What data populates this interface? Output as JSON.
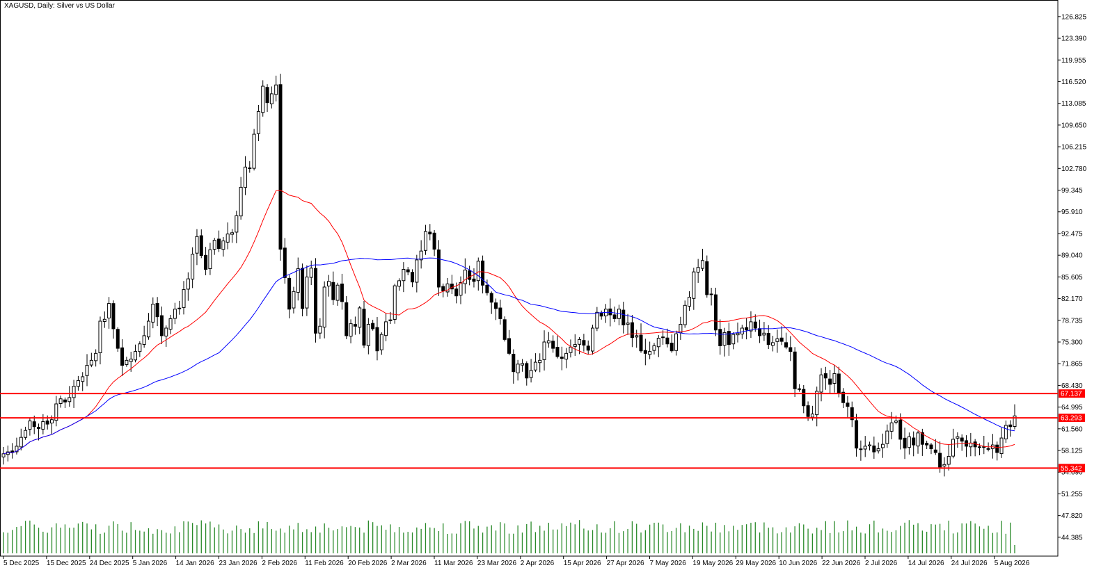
{
  "chart_data": {
    "type": "candlestick",
    "title": "XAGUSD, Daily:  Silver vs US Dollar",
    "ylim": [
      42.5,
      127.8
    ],
    "y_ticks": [
      "126.825",
      "123.390",
      "119.955",
      "116.520",
      "113.085",
      "109.650",
      "106.215",
      "102.780",
      "99.345",
      "95.910",
      "92.475",
      "89.040",
      "85.605",
      "82.170",
      "78.735",
      "75.300",
      "71.865",
      "68.430",
      "64.995",
      "61.560",
      "58.125",
      "54.690",
      "51.255",
      "47.820",
      "44.385"
    ],
    "x_ticks": [
      "5 Dec 2025",
      "15 Dec 2025",
      "24 Dec 2025",
      "5 Jan 2026",
      "14 Jan 2026",
      "23 Jan 2026",
      "2 Feb 2026",
      "11 Feb 2026",
      "20 Feb 2026",
      "2 Mar 2026",
      "11 Mar 2026",
      "23 Mar 2026",
      "2 Apr 2026",
      "15 Apr 2026",
      "27 Apr 2026",
      "7 May 2026",
      "19 May 2026",
      "29 May 2026",
      "10 Jun 2026",
      "22 Jun 2026",
      "2 Jul 2026",
      "14 Jul 2026",
      "24 Jul 2026",
      "5 Aug 2026"
    ],
    "price_levels": [
      {
        "label": "67.137",
        "value": 67.137,
        "color": "#ff0000"
      },
      {
        "label": "63.293",
        "value": 63.293,
        "color": "#ff0000"
      },
      {
        "label": "55.342",
        "value": 55.342,
        "color": "#ff0000"
      }
    ],
    "close_series": [
      57.6,
      57.9,
      57.8,
      58.8,
      60.2,
      61.3,
      62.8,
      61.9,
      61.6,
      62.7,
      62.3,
      63.0,
      65.5,
      66.3,
      65.8,
      66.5,
      68.3,
      69.2,
      69.8,
      71.6,
      72.4,
      73.5,
      78.6,
      78.9,
      81.4,
      77.4,
      74.3,
      71.6,
      72.4,
      72.6,
      73.8,
      75.0,
      76.3,
      78.6,
      81.3,
      79.3,
      76.3,
      77.5,
      79.0,
      80.5,
      80.6,
      83.6,
      85.3,
      89.2,
      92.0,
      89.0,
      86.8,
      89.9,
      91.4,
      90.1,
      91.3,
      92.4,
      92.6,
      95.3,
      99.8,
      103.0,
      102.8,
      108.2,
      111.8,
      115.8,
      113.2,
      114.6,
      116.0,
      90.0,
      85.5,
      80.5,
      83.3,
      86.9,
      80.6,
      85.6,
      87.0,
      76.7,
      77.8,
      84.0,
      84.9,
      82.0,
      84.3,
      81.7,
      76.3,
      78.2,
      77.8,
      80.7,
      74.8,
      78.1,
      77.4,
      73.9,
      76.5,
      78.5,
      78.8,
      84.2,
      85.0,
      86.8,
      86.4,
      84.8,
      88.3,
      89.7,
      92.8,
      92.4,
      90.0,
      84.0,
      83.4,
      84.5,
      83.7,
      82.6,
      84.7,
      86.7,
      85.2,
      84.9,
      88.1,
      84.3,
      83.1,
      81.6,
      80.6,
      79.0,
      75.7,
      73.5,
      70.6,
      71.8,
      71.9,
      69.6,
      70.8,
      72.1,
      72.4,
      75.3,
      75.5,
      74.3,
      73.0,
      72.7,
      73.5,
      74.5,
      74.9,
      75.7,
      74.8,
      74.0,
      77.5,
      80.0,
      79.4,
      80.5,
      79.6,
      79.0,
      80.5,
      78.0,
      78.3,
      76.0,
      76.3,
      73.9,
      73.5,
      73.8,
      74.7,
      75.9,
      76.1,
      75.0,
      73.9,
      76.6,
      78.1,
      81.1,
      82.4,
      86.4,
      87.1,
      88.2,
      82.8,
      82.9,
      77.2,
      74.7,
      76.8,
      74.9,
      76.5,
      76.7,
      77.5,
      77.2,
      78.5,
      77.5,
      76.3,
      76.7,
      74.9,
      75.2,
      75.8,
      75.4,
      74.5,
      73.8,
      67.9,
      67.8,
      65.2,
      63.5,
      63.9,
      67.5,
      70.1,
      69.6,
      68.6,
      70.3,
      67.2,
      65.7,
      65.1,
      63.0,
      58.5,
      58.3,
      58.8,
      59.0,
      57.9,
      58.4,
      59.1,
      61.2,
      62.5,
      62.8,
      59.9,
      58.5,
      60.3,
      59.0,
      60.9,
      59.1,
      59.0,
      58.4,
      57.8,
      55.5,
      55.9,
      57.2,
      59.9,
      60.3,
      59.6,
      58.8,
      59.3,
      58.7,
      58.7,
      58.6,
      58.3,
      59.0,
      57.8,
      60.1,
      62.1,
      61.9,
      63.6
    ]
  }
}
